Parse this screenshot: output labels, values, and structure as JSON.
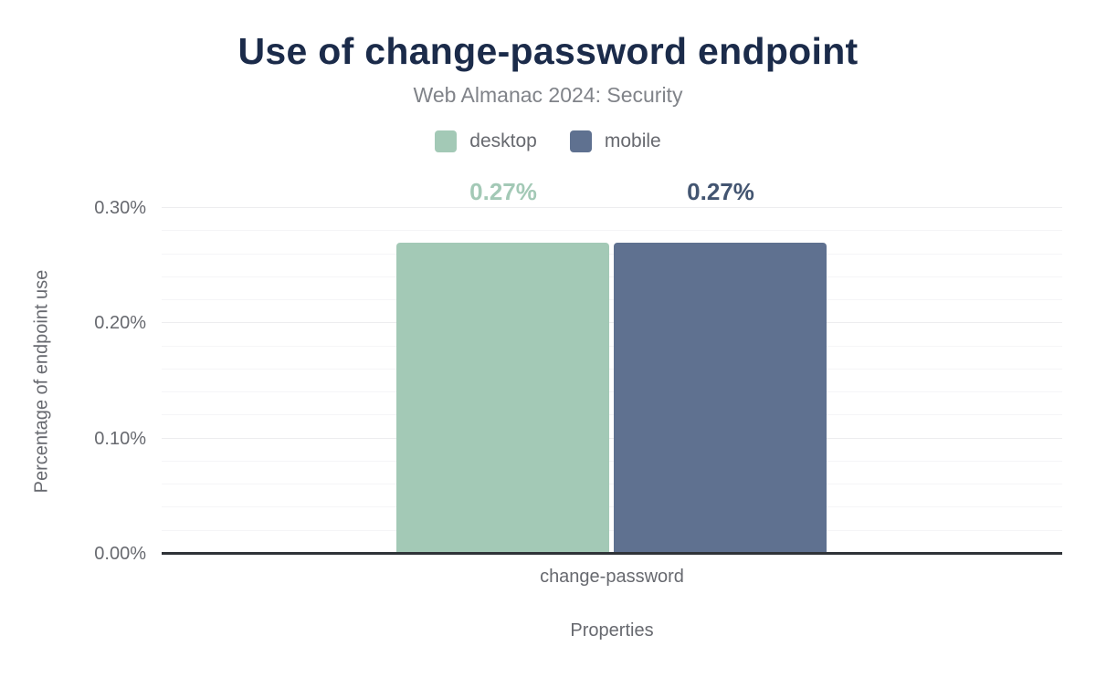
{
  "chart_data": {
    "type": "bar",
    "title": "Use of change-password endpoint",
    "subtitle": "Web Almanac 2024: Security",
    "xlabel": "Properties",
    "ylabel": "Percentage of endpoint use",
    "categories": [
      "change-password"
    ],
    "series": [
      {
        "name": "desktop",
        "values": [
          0.27
        ],
        "labels": [
          "0.27%"
        ],
        "color": "#a3c9b6",
        "label_color": "#a3c9b6"
      },
      {
        "name": "mobile",
        "values": [
          0.27
        ],
        "labels": [
          "0.27%"
        ],
        "color": "#5f7190",
        "label_color": "#435571"
      }
    ],
    "ylim": [
      0,
      0.3
    ],
    "y_tick_step": 0.1,
    "y_minor_step": 0.02,
    "y_tick_labels": [
      "0.00%",
      "0.10%",
      "0.20%",
      "0.30%"
    ],
    "grid": true,
    "legend_position": "top",
    "unit": "%"
  },
  "colors": {
    "background": "#ffffff",
    "title": "#1b2b4a",
    "subtitle": "#808389",
    "axis_text": "#67696f",
    "axis_line": "#2f3338",
    "gridline_minor": "#f5f5f7",
    "gridline_major": "#ededef"
  }
}
